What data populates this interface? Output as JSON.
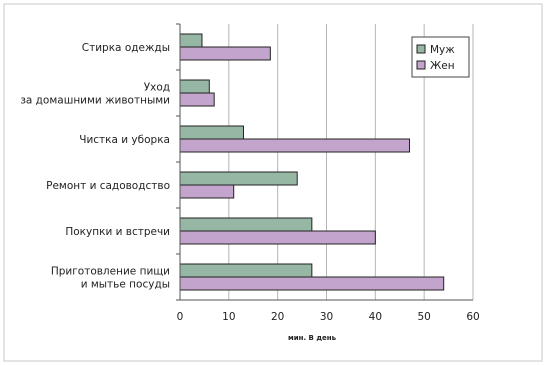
{
  "chart_data": {
    "type": "bar",
    "orientation": "horizontal",
    "categories": [
      [
        "Стирка одежды"
      ],
      [
        "Уход",
        "за домашними животными"
      ],
      [
        "Чистка и уборка"
      ],
      [
        "Ремонт и садоводство"
      ],
      [
        "Покупки и встречи"
      ],
      [
        "Приготовление пищи",
        "и мытье посуды"
      ]
    ],
    "series": [
      {
        "name": "Муж",
        "color": "#97b7a5",
        "values": [
          4.5,
          6,
          13,
          24,
          27,
          27
        ]
      },
      {
        "name": "Жен",
        "color": "#c3a4cc",
        "values": [
          18.5,
          7,
          47,
          11,
          40,
          54
        ]
      }
    ],
    "xlim": [
      0,
      60
    ],
    "xticks": [
      0,
      10,
      20,
      30,
      40,
      50,
      60
    ],
    "xlabel": "мин. В день",
    "ylabel": "",
    "grid": "vertical",
    "legend_position": "top-right"
  }
}
